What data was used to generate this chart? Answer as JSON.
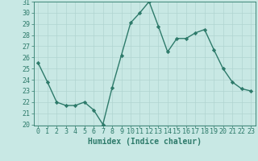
{
  "x": [
    0,
    1,
    2,
    3,
    4,
    5,
    6,
    7,
    8,
    9,
    10,
    11,
    12,
    13,
    14,
    15,
    16,
    17,
    18,
    19,
    20,
    21,
    22,
    23
  ],
  "y": [
    25.5,
    23.8,
    22.0,
    21.7,
    21.7,
    22.0,
    21.3,
    20.0,
    23.3,
    26.2,
    29.1,
    30.0,
    31.0,
    28.8,
    26.5,
    27.7,
    27.7,
    28.2,
    28.5,
    26.7,
    25.0,
    23.8,
    23.2,
    23.0
  ],
  "line_color": "#2d7a6a",
  "marker": "D",
  "marker_size": 2.2,
  "bg_color": "#c8e8e4",
  "plot_bg_color": "#c8e8e4",
  "grid_color": "#b0d4d0",
  "xlabel": "Humidex (Indice chaleur)",
  "ylim": [
    20,
    31
  ],
  "xlim": [
    -0.5,
    23.5
  ],
  "yticks": [
    20,
    21,
    22,
    23,
    24,
    25,
    26,
    27,
    28,
    29,
    30,
    31
  ],
  "xticks": [
    0,
    1,
    2,
    3,
    4,
    5,
    6,
    7,
    8,
    9,
    10,
    11,
    12,
    13,
    14,
    15,
    16,
    17,
    18,
    19,
    20,
    21,
    22,
    23
  ],
  "xlabel_fontsize": 7.0,
  "tick_fontsize": 6.0,
  "linewidth": 1.0
}
